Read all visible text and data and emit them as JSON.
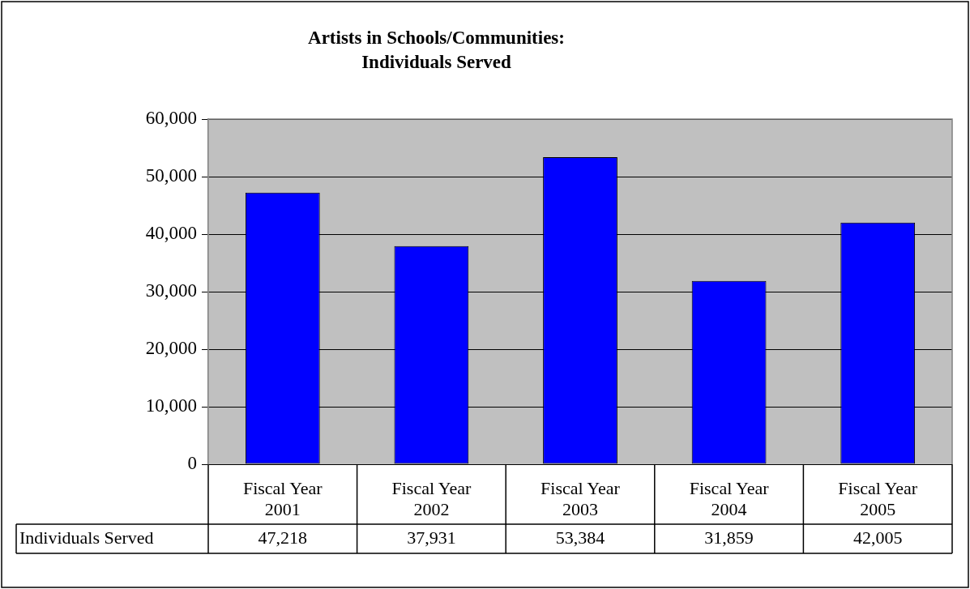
{
  "chart_data": {
    "type": "bar",
    "title": "Artists in Schools/Communities: Individuals Served",
    "categories": [
      "Fiscal Year 2001",
      "Fiscal Year 2002",
      "Fiscal Year 2003",
      "Fiscal Year 2004",
      "Fiscal Year 2005"
    ],
    "series": [
      {
        "name": "Individuals Served",
        "color": "#0000ff",
        "values": [
          47218,
          37931,
          53384,
          31859,
          42005
        ],
        "value_labels": [
          "47,218",
          "37,931",
          "53,384",
          "31,859",
          "42,005"
        ]
      }
    ],
    "ylim": [
      0,
      60000
    ],
    "yticks": [
      0,
      {
        "value": 10000,
        "label": "10,000"
      },
      {
        "value": 20000,
        "label": "20,000"
      },
      {
        "value": 30000,
        "label": "30,000"
      },
      {
        "value": 40000,
        "label": "40,000"
      },
      {
        "value": 50000,
        "label": "50,000"
      },
      {
        "value": 60000,
        "label": "60,000"
      }
    ],
    "grid": "y",
    "legend": "bottom left"
  }
}
